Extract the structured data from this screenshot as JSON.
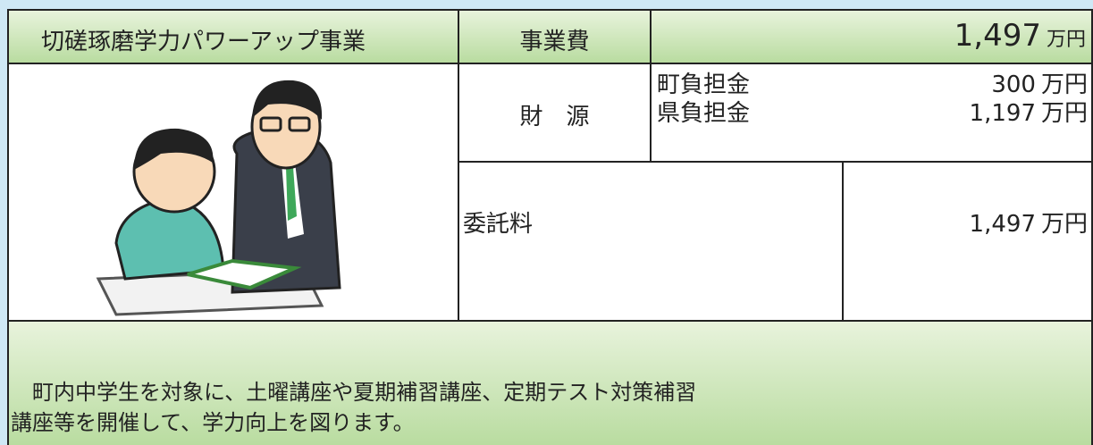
{
  "header": {
    "title": "切磋琢磨学力パワーアップ事業",
    "cost_label": "事業費",
    "cost_amount": "1,497",
    "cost_unit": "万円"
  },
  "funding": {
    "label": "財　源",
    "items": [
      {
        "name": "町負担金",
        "amount": "300",
        "unit": "万円"
      },
      {
        "name": "県負担金",
        "amount": "1,197",
        "unit": "万円"
      }
    ]
  },
  "commission": {
    "label": "委託料",
    "amount": "1,497",
    "unit": "万円"
  },
  "description": "町内中学生を対象に、土曜講座や夏期補習講座、定期テスト対策補習講座等を開催して、学力向上を図ります。"
}
